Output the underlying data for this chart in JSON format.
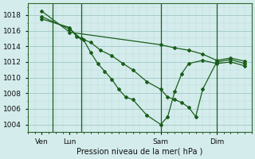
{
  "bg_color": "#d4ecec",
  "grid_major_color": "#a8cccc",
  "grid_minor_color": "#bcdada",
  "line_color": "#1a5e1a",
  "xlabel": "Pression niveau de la mer( hPa )",
  "ylim": [
    1003.0,
    1019.5
  ],
  "xlim": [
    0.0,
    16.0
  ],
  "yticks": [
    1004,
    1006,
    1008,
    1010,
    1012,
    1014,
    1016,
    1018
  ],
  "xtick_positions": [
    1.0,
    3.0,
    9.5,
    13.5
  ],
  "xtick_labels": [
    "Ven",
    "Lun",
    "Sam",
    "Dim"
  ],
  "vline_positions": [
    1.8,
    3.8,
    9.5,
    13.5
  ],
  "series": [
    {
      "x": [
        1.0,
        3.0,
        9.5,
        10.5,
        11.5,
        12.5,
        13.5,
        14.5,
        15.5
      ],
      "y": [
        1018.5,
        1015.8,
        1014.2,
        1013.8,
        1013.5,
        1013.0,
        1012.2,
        1012.5,
        1012.1
      ]
    },
    {
      "x": [
        1.0,
        3.0,
        3.8,
        4.5,
        5.2,
        6.0,
        6.8,
        7.5,
        8.5,
        9.5,
        10.0,
        10.5,
        11.0,
        11.5,
        12.0,
        12.5,
        13.5,
        14.5,
        15.5
      ],
      "y": [
        1017.8,
        1016.2,
        1015.0,
        1014.5,
        1013.5,
        1012.8,
        1011.8,
        1011.0,
        1009.5,
        1008.5,
        1007.5,
        1007.2,
        1006.8,
        1006.2,
        1005.0,
        1008.5,
        1012.0,
        1012.3,
        1011.8
      ]
    },
    {
      "x": [
        1.0,
        3.0,
        3.5,
        4.0,
        4.5,
        5.0,
        5.5,
        6.0,
        6.5,
        7.0,
        7.5,
        8.5,
        9.5,
        10.0,
        10.5,
        11.0,
        11.5,
        12.5,
        13.5,
        14.5,
        15.5
      ],
      "y": [
        1017.5,
        1016.4,
        1015.2,
        1014.8,
        1013.2,
        1011.8,
        1010.8,
        1009.8,
        1008.5,
        1007.5,
        1007.2,
        1005.2,
        1004.0,
        1005.0,
        1008.2,
        1010.5,
        1011.8,
        1012.2,
        1011.8,
        1012.0,
        1011.5
      ]
    }
  ]
}
